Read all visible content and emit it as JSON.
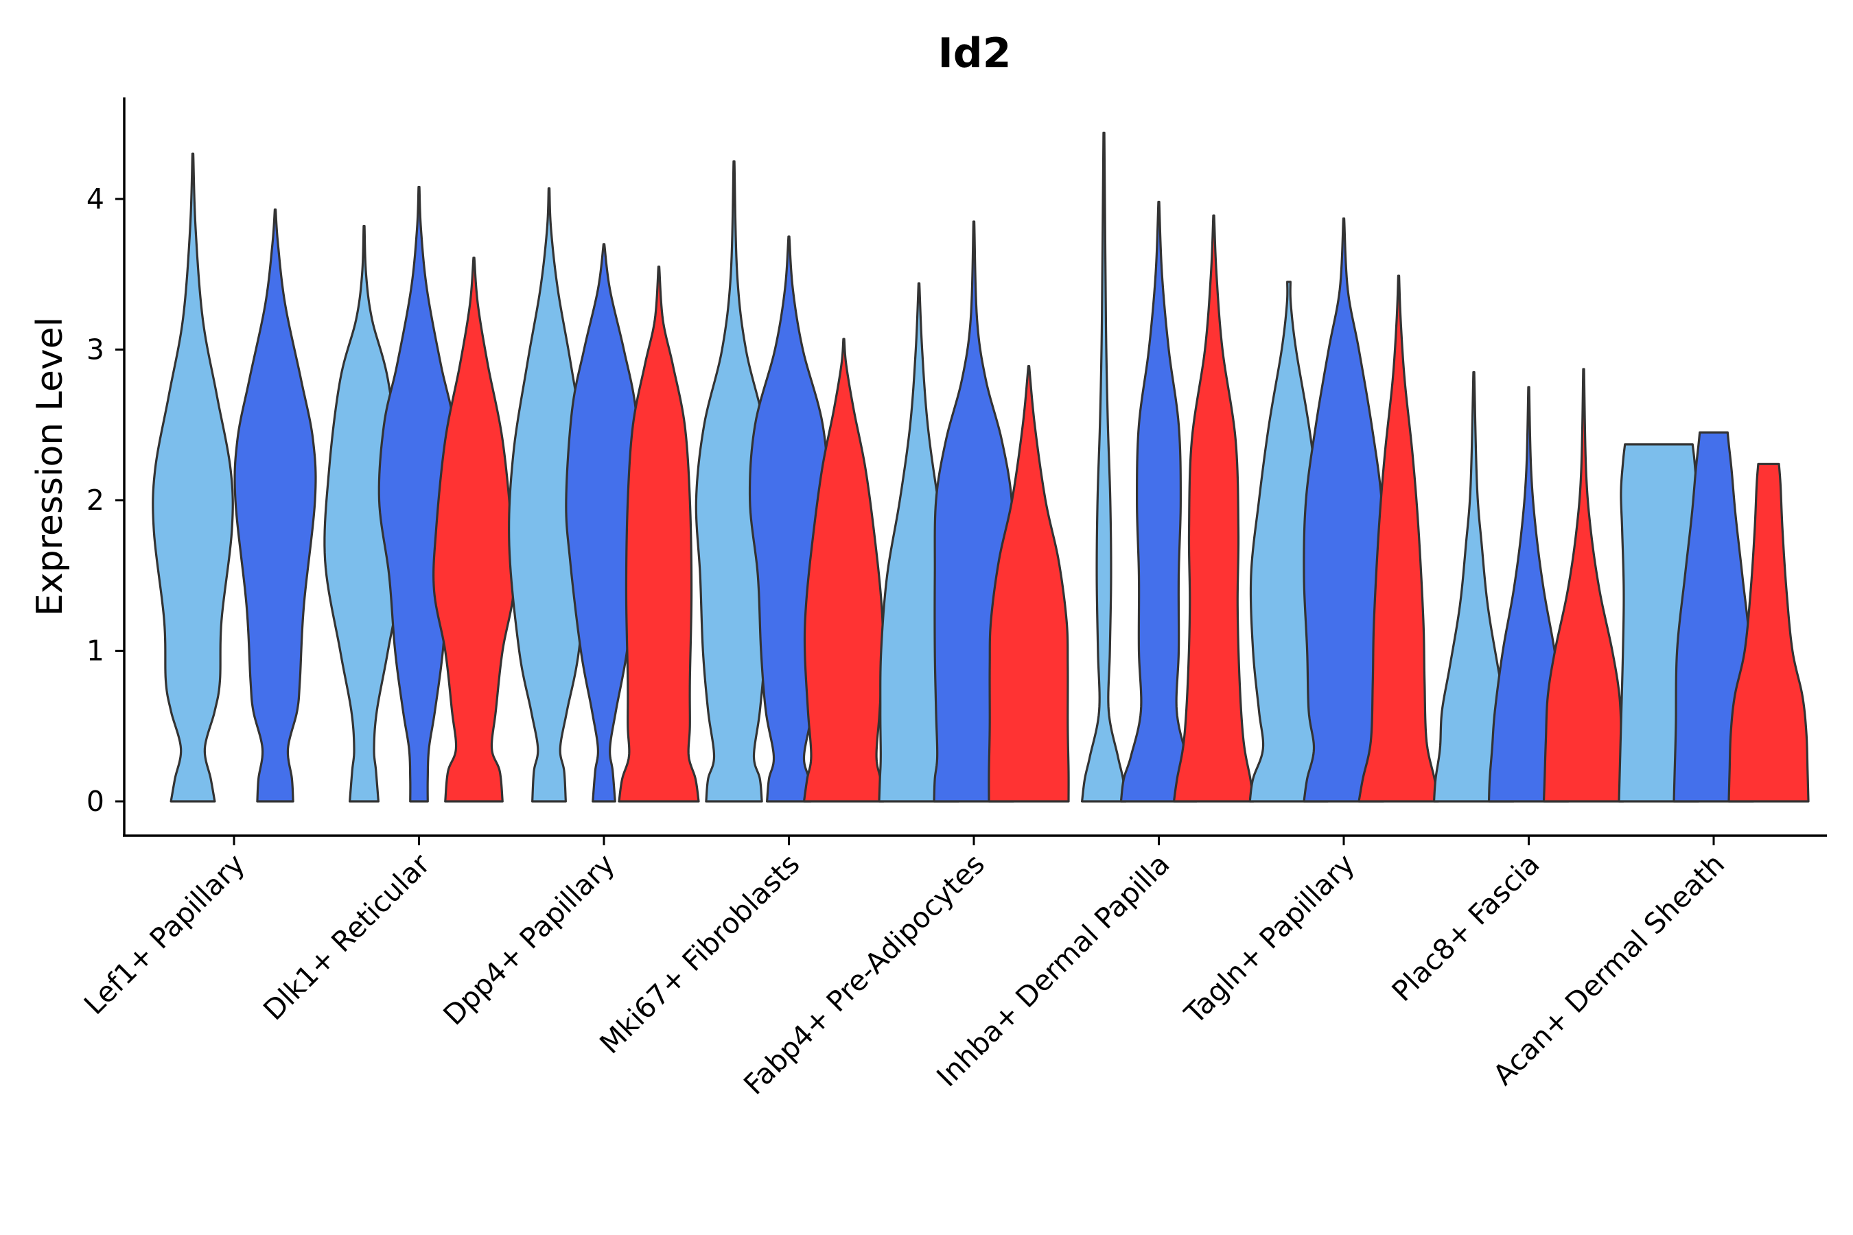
{
  "chart_data": {
    "type": "violin",
    "title": "Id2",
    "xlabel": "",
    "ylabel": "Expression Level",
    "ylim": [
      -0.22,
      4.68
    ],
    "yticks": [
      0,
      1,
      2,
      3,
      4
    ],
    "categories": [
      "Lef1+ Papillary",
      "Dlk1+ Reticular",
      "Dpp4+ Papillary",
      "Mki67+ Fibroblasts",
      "Fabp4+ Pre-Adipocytes",
      "Inhba+ Dermal Papilla",
      "Tagln+ Papillary",
      "Plac8+ Fascia",
      "Acan+ Dermal Sheath"
    ],
    "group_colors": [
      "#7CBEEC",
      "#4470EB",
      "#FF3333"
    ],
    "violins": [
      {
        "category": 0,
        "group": 0,
        "max": 4.3,
        "profile": [
          [
            0,
            0.55
          ],
          [
            0.15,
            0.45
          ],
          [
            0.35,
            0.3
          ],
          [
            0.6,
            0.55
          ],
          [
            0.8,
            0.68
          ],
          [
            1.2,
            0.72
          ],
          [
            1.8,
            0.98
          ],
          [
            2.2,
            0.95
          ],
          [
            2.7,
            0.6
          ],
          [
            3.2,
            0.25
          ],
          [
            3.8,
            0.07
          ],
          [
            4.3,
            0.01
          ]
        ]
      },
      {
        "category": 0,
        "group": 1,
        "max": 3.93,
        "profile": [
          [
            0,
            0.45
          ],
          [
            0.15,
            0.42
          ],
          [
            0.35,
            0.32
          ],
          [
            0.6,
            0.55
          ],
          [
            0.8,
            0.62
          ],
          [
            1.3,
            0.72
          ],
          [
            2.0,
            1.0
          ],
          [
            2.4,
            0.95
          ],
          [
            2.8,
            0.65
          ],
          [
            3.3,
            0.25
          ],
          [
            3.7,
            0.07
          ],
          [
            3.93,
            0.01
          ]
        ]
      },
      {
        "category": 1,
        "group": 0,
        "max": 3.82,
        "profile": [
          [
            0,
            0.36
          ],
          [
            0.2,
            0.3
          ],
          [
            0.35,
            0.25
          ],
          [
            0.6,
            0.32
          ],
          [
            1.0,
            0.6
          ],
          [
            1.6,
            0.98
          ],
          [
            2.2,
            0.88
          ],
          [
            2.8,
            0.6
          ],
          [
            3.2,
            0.2
          ],
          [
            3.5,
            0.05
          ],
          [
            3.82,
            0.01
          ]
        ]
      },
      {
        "category": 1,
        "group": 1,
        "max": 4.08,
        "profile": [
          [
            0,
            0.22
          ],
          [
            0.15,
            0.22
          ],
          [
            0.35,
            0.25
          ],
          [
            0.6,
            0.4
          ],
          [
            1.0,
            0.6
          ],
          [
            1.5,
            0.75
          ],
          [
            2.0,
            1.0
          ],
          [
            2.5,
            0.88
          ],
          [
            2.9,
            0.55
          ],
          [
            3.4,
            0.2
          ],
          [
            3.8,
            0.05
          ],
          [
            4.08,
            0.01
          ]
        ]
      },
      {
        "category": 1,
        "group": 2,
        "max": 3.61,
        "profile": [
          [
            0,
            0.72
          ],
          [
            0.2,
            0.65
          ],
          [
            0.35,
            0.45
          ],
          [
            0.6,
            0.55
          ],
          [
            1.0,
            0.72
          ],
          [
            1.4,
            1.0
          ],
          [
            1.8,
            0.95
          ],
          [
            2.4,
            0.72
          ],
          [
            2.9,
            0.35
          ],
          [
            3.3,
            0.1
          ],
          [
            3.61,
            0.01
          ]
        ]
      },
      {
        "category": 2,
        "group": 0,
        "max": 4.07,
        "profile": [
          [
            0,
            0.42
          ],
          [
            0.2,
            0.38
          ],
          [
            0.35,
            0.28
          ],
          [
            0.6,
            0.45
          ],
          [
            1.0,
            0.75
          ],
          [
            1.7,
            1.0
          ],
          [
            2.3,
            0.9
          ],
          [
            2.9,
            0.55
          ],
          [
            3.4,
            0.22
          ],
          [
            3.8,
            0.05
          ],
          [
            4.07,
            0.01
          ]
        ]
      },
      {
        "category": 2,
        "group": 1,
        "max": 3.7,
        "profile": [
          [
            0,
            0.28
          ],
          [
            0.2,
            0.22
          ],
          [
            0.35,
            0.15
          ],
          [
            0.6,
            0.3
          ],
          [
            1.0,
            0.58
          ],
          [
            1.6,
            0.85
          ],
          [
            2.0,
            0.95
          ],
          [
            2.6,
            0.8
          ],
          [
            3.0,
            0.5
          ],
          [
            3.4,
            0.15
          ],
          [
            3.7,
            0.01
          ]
        ]
      },
      {
        "category": 2,
        "group": 2,
        "max": 3.55,
        "profile": [
          [
            0,
            1.0
          ],
          [
            0.15,
            0.92
          ],
          [
            0.3,
            0.75
          ],
          [
            0.5,
            0.78
          ],
          [
            0.8,
            0.78
          ],
          [
            1.4,
            0.82
          ],
          [
            2.0,
            0.78
          ],
          [
            2.5,
            0.65
          ],
          [
            2.9,
            0.35
          ],
          [
            3.2,
            0.1
          ],
          [
            3.55,
            0.01
          ]
        ]
      },
      {
        "category": 3,
        "group": 0,
        "max": 4.25,
        "profile": [
          [
            0,
            0.7
          ],
          [
            0.15,
            0.65
          ],
          [
            0.3,
            0.5
          ],
          [
            0.6,
            0.65
          ],
          [
            1.0,
            0.78
          ],
          [
            1.5,
            0.85
          ],
          [
            2.0,
            0.95
          ],
          [
            2.5,
            0.75
          ],
          [
            3.0,
            0.3
          ],
          [
            3.5,
            0.08
          ],
          [
            4.25,
            0.01
          ]
        ]
      },
      {
        "category": 3,
        "group": 1,
        "max": 3.75,
        "profile": [
          [
            0,
            0.55
          ],
          [
            0.15,
            0.5
          ],
          [
            0.3,
            0.38
          ],
          [
            0.6,
            0.58
          ],
          [
            1.0,
            0.7
          ],
          [
            1.5,
            0.78
          ],
          [
            2.0,
            0.98
          ],
          [
            2.5,
            0.85
          ],
          [
            3.0,
            0.35
          ],
          [
            3.4,
            0.1
          ],
          [
            3.75,
            0.01
          ]
        ]
      },
      {
        "category": 3,
        "group": 2,
        "max": 3.07,
        "profile": [
          [
            0,
            1.0
          ],
          [
            0.15,
            0.92
          ],
          [
            0.3,
            0.82
          ],
          [
            0.6,
            0.9
          ],
          [
            1.0,
            0.98
          ],
          [
            1.3,
            0.95
          ],
          [
            1.7,
            0.8
          ],
          [
            2.2,
            0.55
          ],
          [
            2.6,
            0.25
          ],
          [
            2.9,
            0.06
          ],
          [
            3.07,
            0.01
          ]
        ]
      },
      {
        "category": 4,
        "group": 0,
        "max": 3.44,
        "profile": [
          [
            0,
            1.0
          ],
          [
            0.15,
            0.98
          ],
          [
            0.3,
            0.96
          ],
          [
            0.6,
            0.97
          ],
          [
            1.0,
            0.95
          ],
          [
            1.5,
            0.8
          ],
          [
            2.0,
            0.48
          ],
          [
            2.5,
            0.22
          ],
          [
            3.0,
            0.08
          ],
          [
            3.44,
            0.01
          ]
        ]
      },
      {
        "category": 4,
        "group": 1,
        "max": 3.85,
        "profile": [
          [
            0,
            1.0
          ],
          [
            0.15,
            0.98
          ],
          [
            0.3,
            0.92
          ],
          [
            0.6,
            0.95
          ],
          [
            1.0,
            0.98
          ],
          [
            1.5,
            0.98
          ],
          [
            2.0,
            0.95
          ],
          [
            2.4,
            0.7
          ],
          [
            2.8,
            0.3
          ],
          [
            3.2,
            0.08
          ],
          [
            3.85,
            0.01
          ]
        ]
      },
      {
        "category": 4,
        "group": 2,
        "max": 2.89,
        "profile": [
          [
            0,
            1.0
          ],
          [
            0.2,
            1.0
          ],
          [
            0.5,
            0.98
          ],
          [
            0.9,
            0.98
          ],
          [
            1.2,
            0.95
          ],
          [
            1.6,
            0.75
          ],
          [
            2.0,
            0.42
          ],
          [
            2.5,
            0.15
          ],
          [
            2.89,
            0.01
          ]
        ]
      },
      {
        "category": 5,
        "group": 0,
        "max": 4.44,
        "profile": [
          [
            0,
            0.55
          ],
          [
            0.15,
            0.48
          ],
          [
            0.3,
            0.35
          ],
          [
            0.6,
            0.12
          ],
          [
            1.0,
            0.15
          ],
          [
            1.5,
            0.18
          ],
          [
            2.0,
            0.16
          ],
          [
            2.5,
            0.1
          ],
          [
            3.0,
            0.06
          ],
          [
            3.5,
            0.04
          ],
          [
            4.44,
            0.01
          ]
        ]
      },
      {
        "category": 5,
        "group": 1,
        "max": 3.98,
        "profile": [
          [
            0,
            0.95
          ],
          [
            0.15,
            0.88
          ],
          [
            0.3,
            0.7
          ],
          [
            0.6,
            0.45
          ],
          [
            1.0,
            0.5
          ],
          [
            1.5,
            0.5
          ],
          [
            2.0,
            0.55
          ],
          [
            2.5,
            0.5
          ],
          [
            3.0,
            0.25
          ],
          [
            3.5,
            0.08
          ],
          [
            3.98,
            0.01
          ]
        ]
      },
      {
        "category": 5,
        "group": 2,
        "max": 3.89,
        "profile": [
          [
            0,
            1.0
          ],
          [
            0.15,
            0.92
          ],
          [
            0.4,
            0.75
          ],
          [
            0.8,
            0.65
          ],
          [
            1.3,
            0.6
          ],
          [
            1.8,
            0.62
          ],
          [
            2.4,
            0.55
          ],
          [
            3.0,
            0.22
          ],
          [
            3.5,
            0.07
          ],
          [
            3.89,
            0.01
          ]
        ]
      },
      {
        "category": 6,
        "group": 0,
        "max": 3.45,
        "profile": [
          [
            0,
            0.98
          ],
          [
            0.15,
            0.9
          ],
          [
            0.35,
            0.65
          ],
          [
            0.6,
            0.75
          ],
          [
            1.0,
            0.9
          ],
          [
            1.5,
            0.95
          ],
          [
            2.0,
            0.75
          ],
          [
            2.5,
            0.5
          ],
          [
            3.0,
            0.18
          ],
          [
            3.3,
            0.05
          ],
          [
            3.45,
            0.04
          ]
        ]
      },
      {
        "category": 6,
        "group": 1,
        "max": 3.87,
        "profile": [
          [
            0,
            1.0
          ],
          [
            0.15,
            0.92
          ],
          [
            0.35,
            0.75
          ],
          [
            0.6,
            0.88
          ],
          [
            1.0,
            0.92
          ],
          [
            1.5,
            1.0
          ],
          [
            2.0,
            0.95
          ],
          [
            2.5,
            0.7
          ],
          [
            3.0,
            0.38
          ],
          [
            3.4,
            0.1
          ],
          [
            3.87,
            0.01
          ]
        ]
      },
      {
        "category": 6,
        "group": 2,
        "max": 3.49,
        "profile": [
          [
            0,
            1.0
          ],
          [
            0.15,
            0.9
          ],
          [
            0.4,
            0.7
          ],
          [
            0.8,
            0.65
          ],
          [
            1.2,
            0.62
          ],
          [
            1.8,
            0.5
          ],
          [
            2.3,
            0.35
          ],
          [
            2.8,
            0.15
          ],
          [
            3.2,
            0.05
          ],
          [
            3.49,
            0.01
          ]
        ]
      },
      {
        "category": 7,
        "group": 0,
        "max": 2.85,
        "profile": [
          [
            0,
            1.0
          ],
          [
            0.15,
            0.96
          ],
          [
            0.35,
            0.85
          ],
          [
            0.6,
            0.8
          ],
          [
            0.9,
            0.6
          ],
          [
            1.3,
            0.35
          ],
          [
            1.7,
            0.2
          ],
          [
            2.1,
            0.08
          ],
          [
            2.85,
            0.01
          ]
        ]
      },
      {
        "category": 7,
        "group": 1,
        "max": 2.75,
        "profile": [
          [
            0,
            1.0
          ],
          [
            0.15,
            0.98
          ],
          [
            0.35,
            0.92
          ],
          [
            0.6,
            0.85
          ],
          [
            1.0,
            0.65
          ],
          [
            1.4,
            0.38
          ],
          [
            1.8,
            0.18
          ],
          [
            2.2,
            0.06
          ],
          [
            2.75,
            0.01
          ]
        ]
      },
      {
        "category": 7,
        "group": 2,
        "max": 2.87,
        "profile": [
          [
            0,
            1.0
          ],
          [
            0.15,
            0.98
          ],
          [
            0.4,
            0.95
          ],
          [
            0.7,
            0.9
          ],
          [
            1.0,
            0.72
          ],
          [
            1.4,
            0.4
          ],
          [
            1.8,
            0.18
          ],
          [
            2.2,
            0.06
          ],
          [
            2.87,
            0.01
          ]
        ]
      },
      {
        "category": 8,
        "group": 0,
        "max": 2.37,
        "profile": [
          [
            0,
            1.0
          ],
          [
            0.2,
            0.98
          ],
          [
            0.5,
            0.95
          ],
          [
            1.0,
            0.9
          ],
          [
            1.4,
            0.88
          ],
          [
            1.8,
            0.92
          ],
          [
            2.05,
            0.95
          ],
          [
            2.25,
            0.9
          ],
          [
            2.37,
            0.85
          ]
        ]
      },
      {
        "category": 8,
        "group": 1,
        "max": 2.45,
        "profile": [
          [
            0,
            1.0
          ],
          [
            0.2,
            0.98
          ],
          [
            0.5,
            0.95
          ],
          [
            1.0,
            0.92
          ],
          [
            1.5,
            0.72
          ],
          [
            1.9,
            0.55
          ],
          [
            2.2,
            0.45
          ],
          [
            2.37,
            0.38
          ],
          [
            2.45,
            0.35
          ]
        ]
      },
      {
        "category": 8,
        "group": 2,
        "max": 2.24,
        "profile": [
          [
            0,
            1.0
          ],
          [
            0.2,
            0.98
          ],
          [
            0.45,
            0.95
          ],
          [
            0.7,
            0.85
          ],
          [
            1.0,
            0.6
          ],
          [
            1.4,
            0.45
          ],
          [
            1.8,
            0.35
          ],
          [
            2.1,
            0.3
          ],
          [
            2.24,
            0.26
          ]
        ]
      }
    ]
  }
}
